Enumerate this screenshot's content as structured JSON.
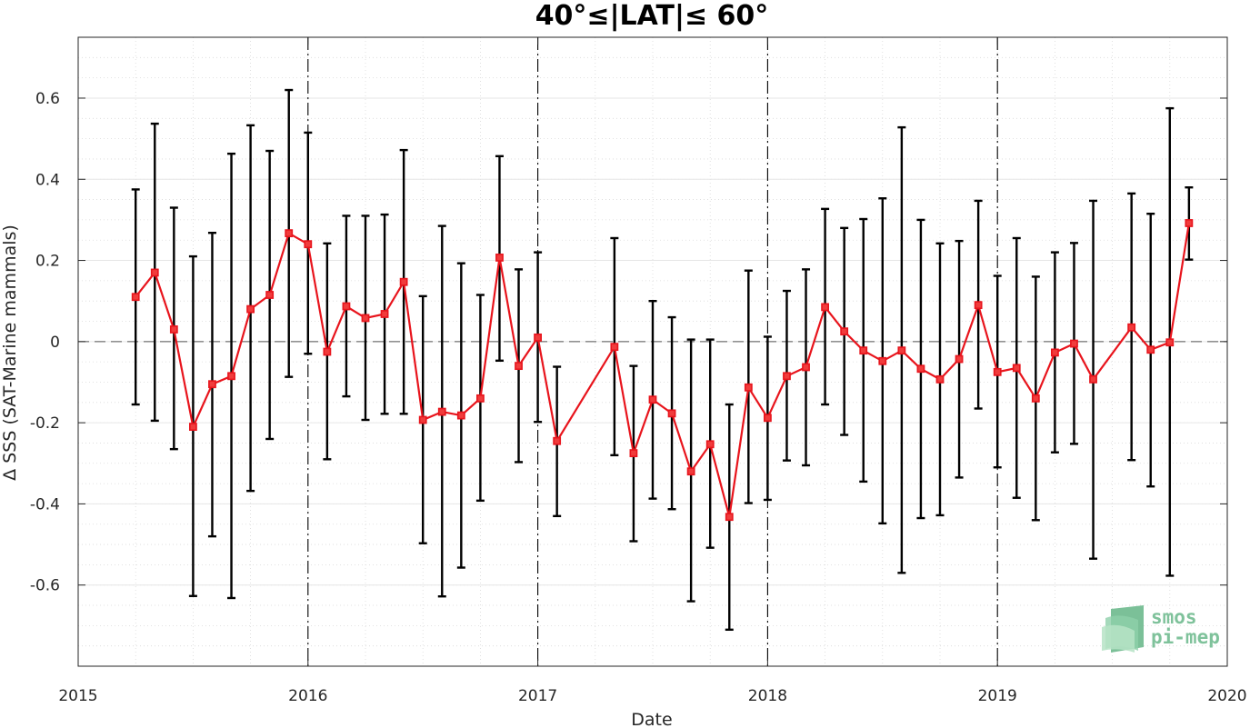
{
  "chart_data": {
    "type": "line",
    "title": "40°≤|LAT|≤ 60°",
    "xlabel": "Date",
    "ylabel": "Δ SSS (SAT-Marine mammals)",
    "xlim": [
      2015,
      2020
    ],
    "ylim": [
      -0.8,
      0.75
    ],
    "x_ticks": [
      "2015",
      "2016",
      "2017",
      "2018",
      "2019",
      "2020"
    ],
    "y_ticks": [
      "-0.6",
      "-0.4",
      "-0.2",
      "0",
      "0.2",
      "0.4",
      "0.6"
    ],
    "grid": true,
    "minor_grid": true,
    "year_boundary_lines": true,
    "zero_line": true,
    "series": [
      {
        "color": "#e8141c",
        "marker": "square",
        "errorbar_color": "#000000",
        "points": [
          {
            "x": "2015-04",
            "y": 0.11,
            "lo": -0.155,
            "hi": 0.375
          },
          {
            "x": "2015-05",
            "y": 0.17,
            "lo": -0.195,
            "hi": 0.537
          },
          {
            "x": "2015-06",
            "y": 0.03,
            "lo": -0.265,
            "hi": 0.33
          },
          {
            "x": "2015-07",
            "y": -0.21,
            "lo": -0.627,
            "hi": 0.21
          },
          {
            "x": "2015-08",
            "y": -0.105,
            "lo": -0.48,
            "hi": 0.268
          },
          {
            "x": "2015-09",
            "y": -0.085,
            "lo": -0.632,
            "hi": 0.463
          },
          {
            "x": "2015-10",
            "y": 0.08,
            "lo": -0.368,
            "hi": 0.533
          },
          {
            "x": "2015-11",
            "y": 0.115,
            "lo": -0.24,
            "hi": 0.47
          },
          {
            "x": "2015-12",
            "y": 0.267,
            "lo": -0.087,
            "hi": 0.62
          },
          {
            "x": "2016-01",
            "y": 0.24,
            "lo": -0.03,
            "hi": 0.515
          },
          {
            "x": "2016-02",
            "y": -0.025,
            "lo": -0.29,
            "hi": 0.242
          },
          {
            "x": "2016-03",
            "y": 0.087,
            "lo": -0.135,
            "hi": 0.31
          },
          {
            "x": "2016-04",
            "y": 0.058,
            "lo": -0.193,
            "hi": 0.31
          },
          {
            "x": "2016-05",
            "y": 0.068,
            "lo": -0.178,
            "hi": 0.313
          },
          {
            "x": "2016-06",
            "y": 0.147,
            "lo": -0.178,
            "hi": 0.472
          },
          {
            "x": "2016-07",
            "y": -0.193,
            "lo": -0.497,
            "hi": 0.112
          },
          {
            "x": "2016-08",
            "y": -0.173,
            "lo": -0.628,
            "hi": 0.285
          },
          {
            "x": "2016-09",
            "y": -0.182,
            "lo": -0.557,
            "hi": 0.193
          },
          {
            "x": "2016-10",
            "y": -0.14,
            "lo": -0.392,
            "hi": 0.115
          },
          {
            "x": "2016-11",
            "y": 0.207,
            "lo": -0.047,
            "hi": 0.457
          },
          {
            "x": "2016-12",
            "y": -0.06,
            "lo": -0.297,
            "hi": 0.178
          },
          {
            "x": "2017-01",
            "y": 0.01,
            "lo": -0.198,
            "hi": 0.22
          },
          {
            "x": "2017-02",
            "y": -0.245,
            "lo": -0.43,
            "hi": -0.062
          },
          {
            "x": "2017-05",
            "y": -0.013,
            "lo": -0.28,
            "hi": 0.255
          },
          {
            "x": "2017-06",
            "y": -0.275,
            "lo": -0.492,
            "hi": -0.06
          },
          {
            "x": "2017-07",
            "y": -0.143,
            "lo": -0.387,
            "hi": 0.1
          },
          {
            "x": "2017-08",
            "y": -0.177,
            "lo": -0.413,
            "hi": 0.06
          },
          {
            "x": "2017-09",
            "y": -0.32,
            "lo": -0.64,
            "hi": 0.005
          },
          {
            "x": "2017-10",
            "y": -0.253,
            "lo": -0.508,
            "hi": 0.005
          },
          {
            "x": "2017-11",
            "y": -0.432,
            "lo": -0.71,
            "hi": -0.155
          },
          {
            "x": "2017-12",
            "y": -0.113,
            "lo": -0.398,
            "hi": 0.175
          },
          {
            "x": "2018-01",
            "y": -0.188,
            "lo": -0.39,
            "hi": 0.012
          },
          {
            "x": "2018-02",
            "y": -0.085,
            "lo": -0.293,
            "hi": 0.125
          },
          {
            "x": "2018-03",
            "y": -0.063,
            "lo": -0.305,
            "hi": 0.178
          },
          {
            "x": "2018-04",
            "y": 0.085,
            "lo": -0.155,
            "hi": 0.327
          },
          {
            "x": "2018-05",
            "y": 0.025,
            "lo": -0.23,
            "hi": 0.28
          },
          {
            "x": "2018-06",
            "y": -0.022,
            "lo": -0.345,
            "hi": 0.302
          },
          {
            "x": "2018-07",
            "y": -0.048,
            "lo": -0.448,
            "hi": 0.353
          },
          {
            "x": "2018-08",
            "y": -0.022,
            "lo": -0.57,
            "hi": 0.528
          },
          {
            "x": "2018-09",
            "y": -0.067,
            "lo": -0.435,
            "hi": 0.3
          },
          {
            "x": "2018-10",
            "y": -0.093,
            "lo": -0.428,
            "hi": 0.242
          },
          {
            "x": "2018-11",
            "y": -0.043,
            "lo": -0.335,
            "hi": 0.248
          },
          {
            "x": "2018-12",
            "y": 0.09,
            "lo": -0.165,
            "hi": 0.347
          },
          {
            "x": "2019-01",
            "y": -0.075,
            "lo": -0.31,
            "hi": 0.162
          },
          {
            "x": "2019-02",
            "y": -0.065,
            "lo": -0.385,
            "hi": 0.255
          },
          {
            "x": "2019-03",
            "y": -0.14,
            "lo": -0.44,
            "hi": 0.16
          },
          {
            "x": "2019-04",
            "y": -0.027,
            "lo": -0.273,
            "hi": 0.22
          },
          {
            "x": "2019-05",
            "y": -0.005,
            "lo": -0.252,
            "hi": 0.243
          },
          {
            "x": "2019-06",
            "y": -0.093,
            "lo": -0.535,
            "hi": 0.347
          },
          {
            "x": "2019-08",
            "y": 0.035,
            "lo": -0.292,
            "hi": 0.365
          },
          {
            "x": "2019-09",
            "y": -0.02,
            "lo": -0.357,
            "hi": 0.315
          },
          {
            "x": "2019-10",
            "y": -0.002,
            "lo": -0.577,
            "hi": 0.575
          },
          {
            "x": "2019-11",
            "y": 0.292,
            "lo": 0.202,
            "hi": 0.38
          }
        ]
      }
    ]
  },
  "logo": {
    "line1": "smos",
    "line2": "pi-mep",
    "color": "#7fc29b"
  }
}
